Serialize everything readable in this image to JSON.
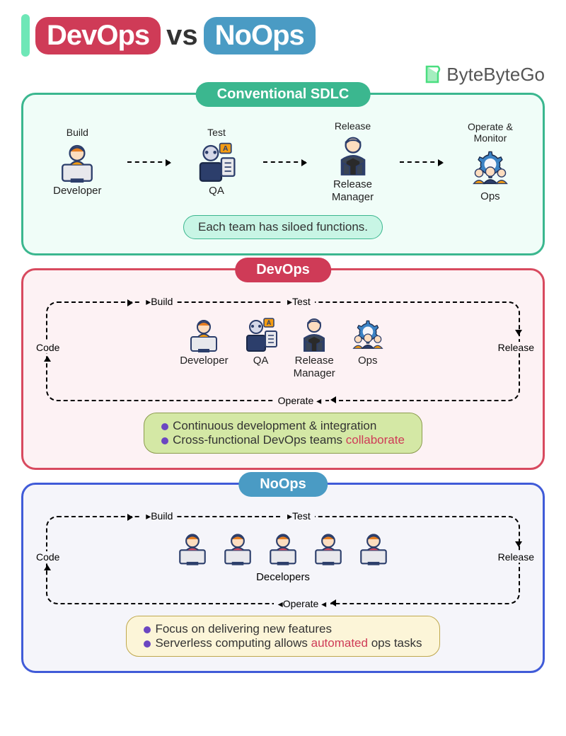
{
  "title": {
    "left": "DevOps",
    "vs": "vs",
    "right": "NoOps"
  },
  "brand": "ByteByteGo",
  "colors": {
    "red": "#CF3B57",
    "blue": "#4A9BC4",
    "green": "#3BB78F",
    "purple": "#6B46C1",
    "panelBlue": "#405BD8",
    "bgGreen": "#F0FDF8",
    "bgRed": "#FDF2F4",
    "bgBlue": "#F5F5FA",
    "capGreen": "#C8F5E5",
    "capOlive": "#D4E8A5",
    "capYellow": "#FCF5D8"
  },
  "panel1": {
    "title": "Conventional SDLC",
    "roles": [
      {
        "top": "Build",
        "bot": "Developer"
      },
      {
        "top": "Test",
        "bot": "QA"
      },
      {
        "top": "Release",
        "bot": "Release\nManager"
      },
      {
        "top": "Operate &\nMonitor",
        "bot": "Ops"
      }
    ],
    "caption": "Each team has siloed functions."
  },
  "panel2": {
    "title": "DevOps",
    "loop": [
      "Build",
      "Test",
      "Release",
      "Operate",
      "Code"
    ],
    "roles": [
      "Developer",
      "QA",
      "Release\nManager",
      "Ops"
    ],
    "caption": [
      {
        "text": "Continuous development & integration"
      },
      {
        "text": "Cross-functional DevOps teams ",
        "hl": "collaborate"
      }
    ]
  },
  "panel3": {
    "title": "NoOps",
    "loop": [
      "Build",
      "Test",
      "Release",
      "Operate",
      "Code"
    ],
    "roleLabel": "Decelopers",
    "devCount": 5,
    "caption": [
      {
        "text": "Focus on delivering new features"
      },
      {
        "text": "Serverless computing allows ",
        "hl": "automated",
        "tail": " ops tasks"
      }
    ]
  }
}
